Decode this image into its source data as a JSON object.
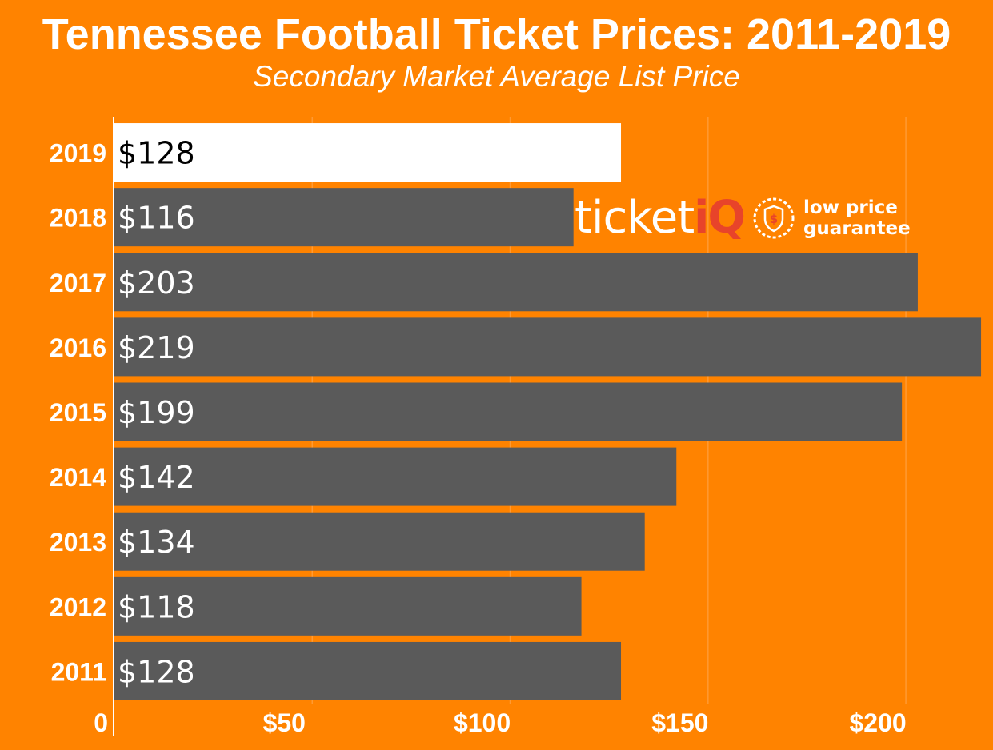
{
  "chart_data": {
    "type": "bar",
    "orientation": "horizontal",
    "title": "Tennessee Football Ticket Prices: 2011-2019",
    "subtitle": "Secondary Market Average List Price",
    "categories": [
      "2019",
      "2018",
      "2017",
      "2016",
      "2015",
      "2014",
      "2013",
      "2012",
      "2011"
    ],
    "values": [
      128,
      116,
      203,
      219,
      199,
      142,
      134,
      118,
      128
    ],
    "data_labels": [
      "$128",
      "$116",
      "$203",
      "$219",
      "$199",
      "$142",
      "$134",
      "$118",
      "$128"
    ],
    "highlight_index": 0,
    "xlim": [
      0,
      220
    ],
    "x_ticks": [
      0,
      50,
      100,
      150,
      200
    ],
    "x_tick_labels": [
      "0",
      "$50",
      "$100",
      "$150",
      "$200"
    ],
    "xlabel": "",
    "ylabel": "",
    "grid": "vertical",
    "legend": "none",
    "colors": {
      "background": "#FF8300",
      "bar": "#5A5A5A",
      "highlight_bar": "#FFFFFF",
      "label_on_bar": "#FFFFFF",
      "label_on_highlight": "#000000",
      "text": "#FFFFFF"
    }
  },
  "watermark": {
    "brand_word": "ticket",
    "brand_suffix": "iQ",
    "brand_color": "#E8442A",
    "badge_icon": "dollar-shield-icon",
    "tagline_line1": "low price",
    "tagline_line2": "guarantee"
  }
}
